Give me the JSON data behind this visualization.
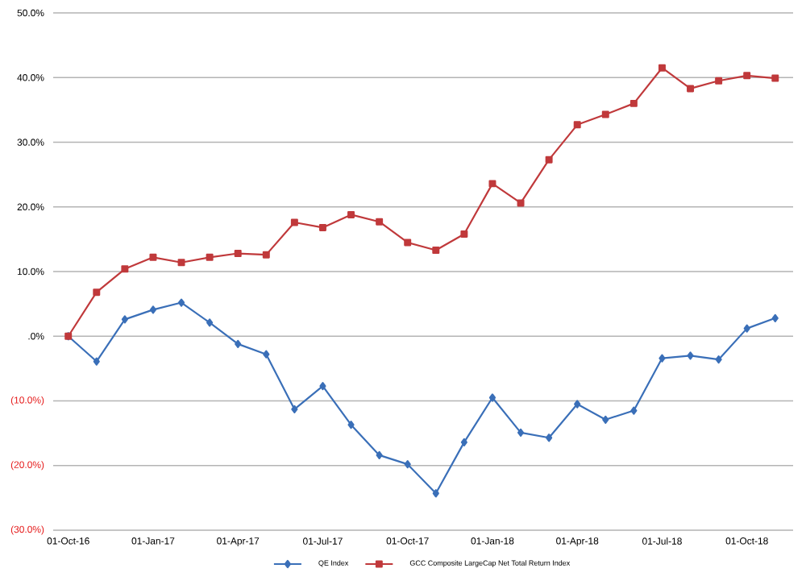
{
  "chart_data": {
    "type": "line",
    "x": [
      "2016-10",
      "2016-11",
      "2016-12",
      "2017-01",
      "2017-02",
      "2017-03",
      "2017-04",
      "2017-05",
      "2017-06",
      "2017-07",
      "2017-08",
      "2017-09",
      "2017-10",
      "2017-11",
      "2017-12",
      "2018-01",
      "2018-02",
      "2018-03",
      "2018-04",
      "2018-05",
      "2018-06",
      "2018-07",
      "2018-08",
      "2018-09",
      "2018-10",
      "2018-11"
    ],
    "series": [
      {
        "name": "QE Index",
        "color": "#3a6fb8",
        "marker": "diamond",
        "values": [
          0,
          -3.9,
          2.6,
          4.1,
          5.2,
          2.1,
          -1.2,
          -2.8,
          -11.3,
          -7.7,
          -13.7,
          -18.4,
          -19.8,
          -24.3,
          -16.4,
          -9.5,
          -14.9,
          -15.7,
          -10.5,
          -12.9,
          -11.5,
          -3.4,
          -3.0,
          -3.6,
          1.2,
          2.8
        ]
      },
      {
        "name": "GCC Composite LargeCap Net Total Return Index",
        "color": "#c0393b",
        "marker": "square",
        "values": [
          0,
          6.8,
          10.4,
          12.2,
          11.4,
          12.2,
          12.8,
          12.6,
          17.6,
          16.8,
          18.8,
          17.7,
          14.5,
          13.3,
          15.8,
          23.6,
          20.6,
          27.3,
          32.7,
          34.3,
          36.0,
          41.5,
          38.3,
          39.5,
          40.3,
          39.9
        ]
      }
    ],
    "xlim": [
      "2016-09-15",
      "2018-11-20"
    ],
    "xticks": [
      {
        "value": "2016-10",
        "label": "01-Oct-16"
      },
      {
        "value": "2017-01",
        "label": "01-Jan-17"
      },
      {
        "value": "2017-04",
        "label": "01-Apr-17"
      },
      {
        "value": "2017-07",
        "label": "01-Jul-17"
      },
      {
        "value": "2017-10",
        "label": "01-Oct-17"
      },
      {
        "value": "2018-01",
        "label": "01-Jan-18"
      },
      {
        "value": "2018-04",
        "label": "01-Apr-18"
      },
      {
        "value": "2018-07",
        "label": "01-Jul-18"
      },
      {
        "value": "2018-10",
        "label": "01-Oct-18"
      }
    ],
    "ylim": [
      -30,
      50
    ],
    "yticks": [
      {
        "value": -30,
        "label": "(30.0%)"
      },
      {
        "value": -20,
        "label": "(20.0%)"
      },
      {
        "value": -10,
        "label": "(10.0%)"
      },
      {
        "value": 0,
        "label": ".0%"
      },
      {
        "value": 10,
        "label": "10.0%"
      },
      {
        "value": 20,
        "label": "20.0%"
      },
      {
        "value": 30,
        "label": "30.0%"
      },
      {
        "value": 40,
        "label": "40.0%"
      },
      {
        "value": 50,
        "label": "50.0%"
      }
    ],
    "grid": "y",
    "legend": "bottom",
    "line_style": "solid"
  }
}
